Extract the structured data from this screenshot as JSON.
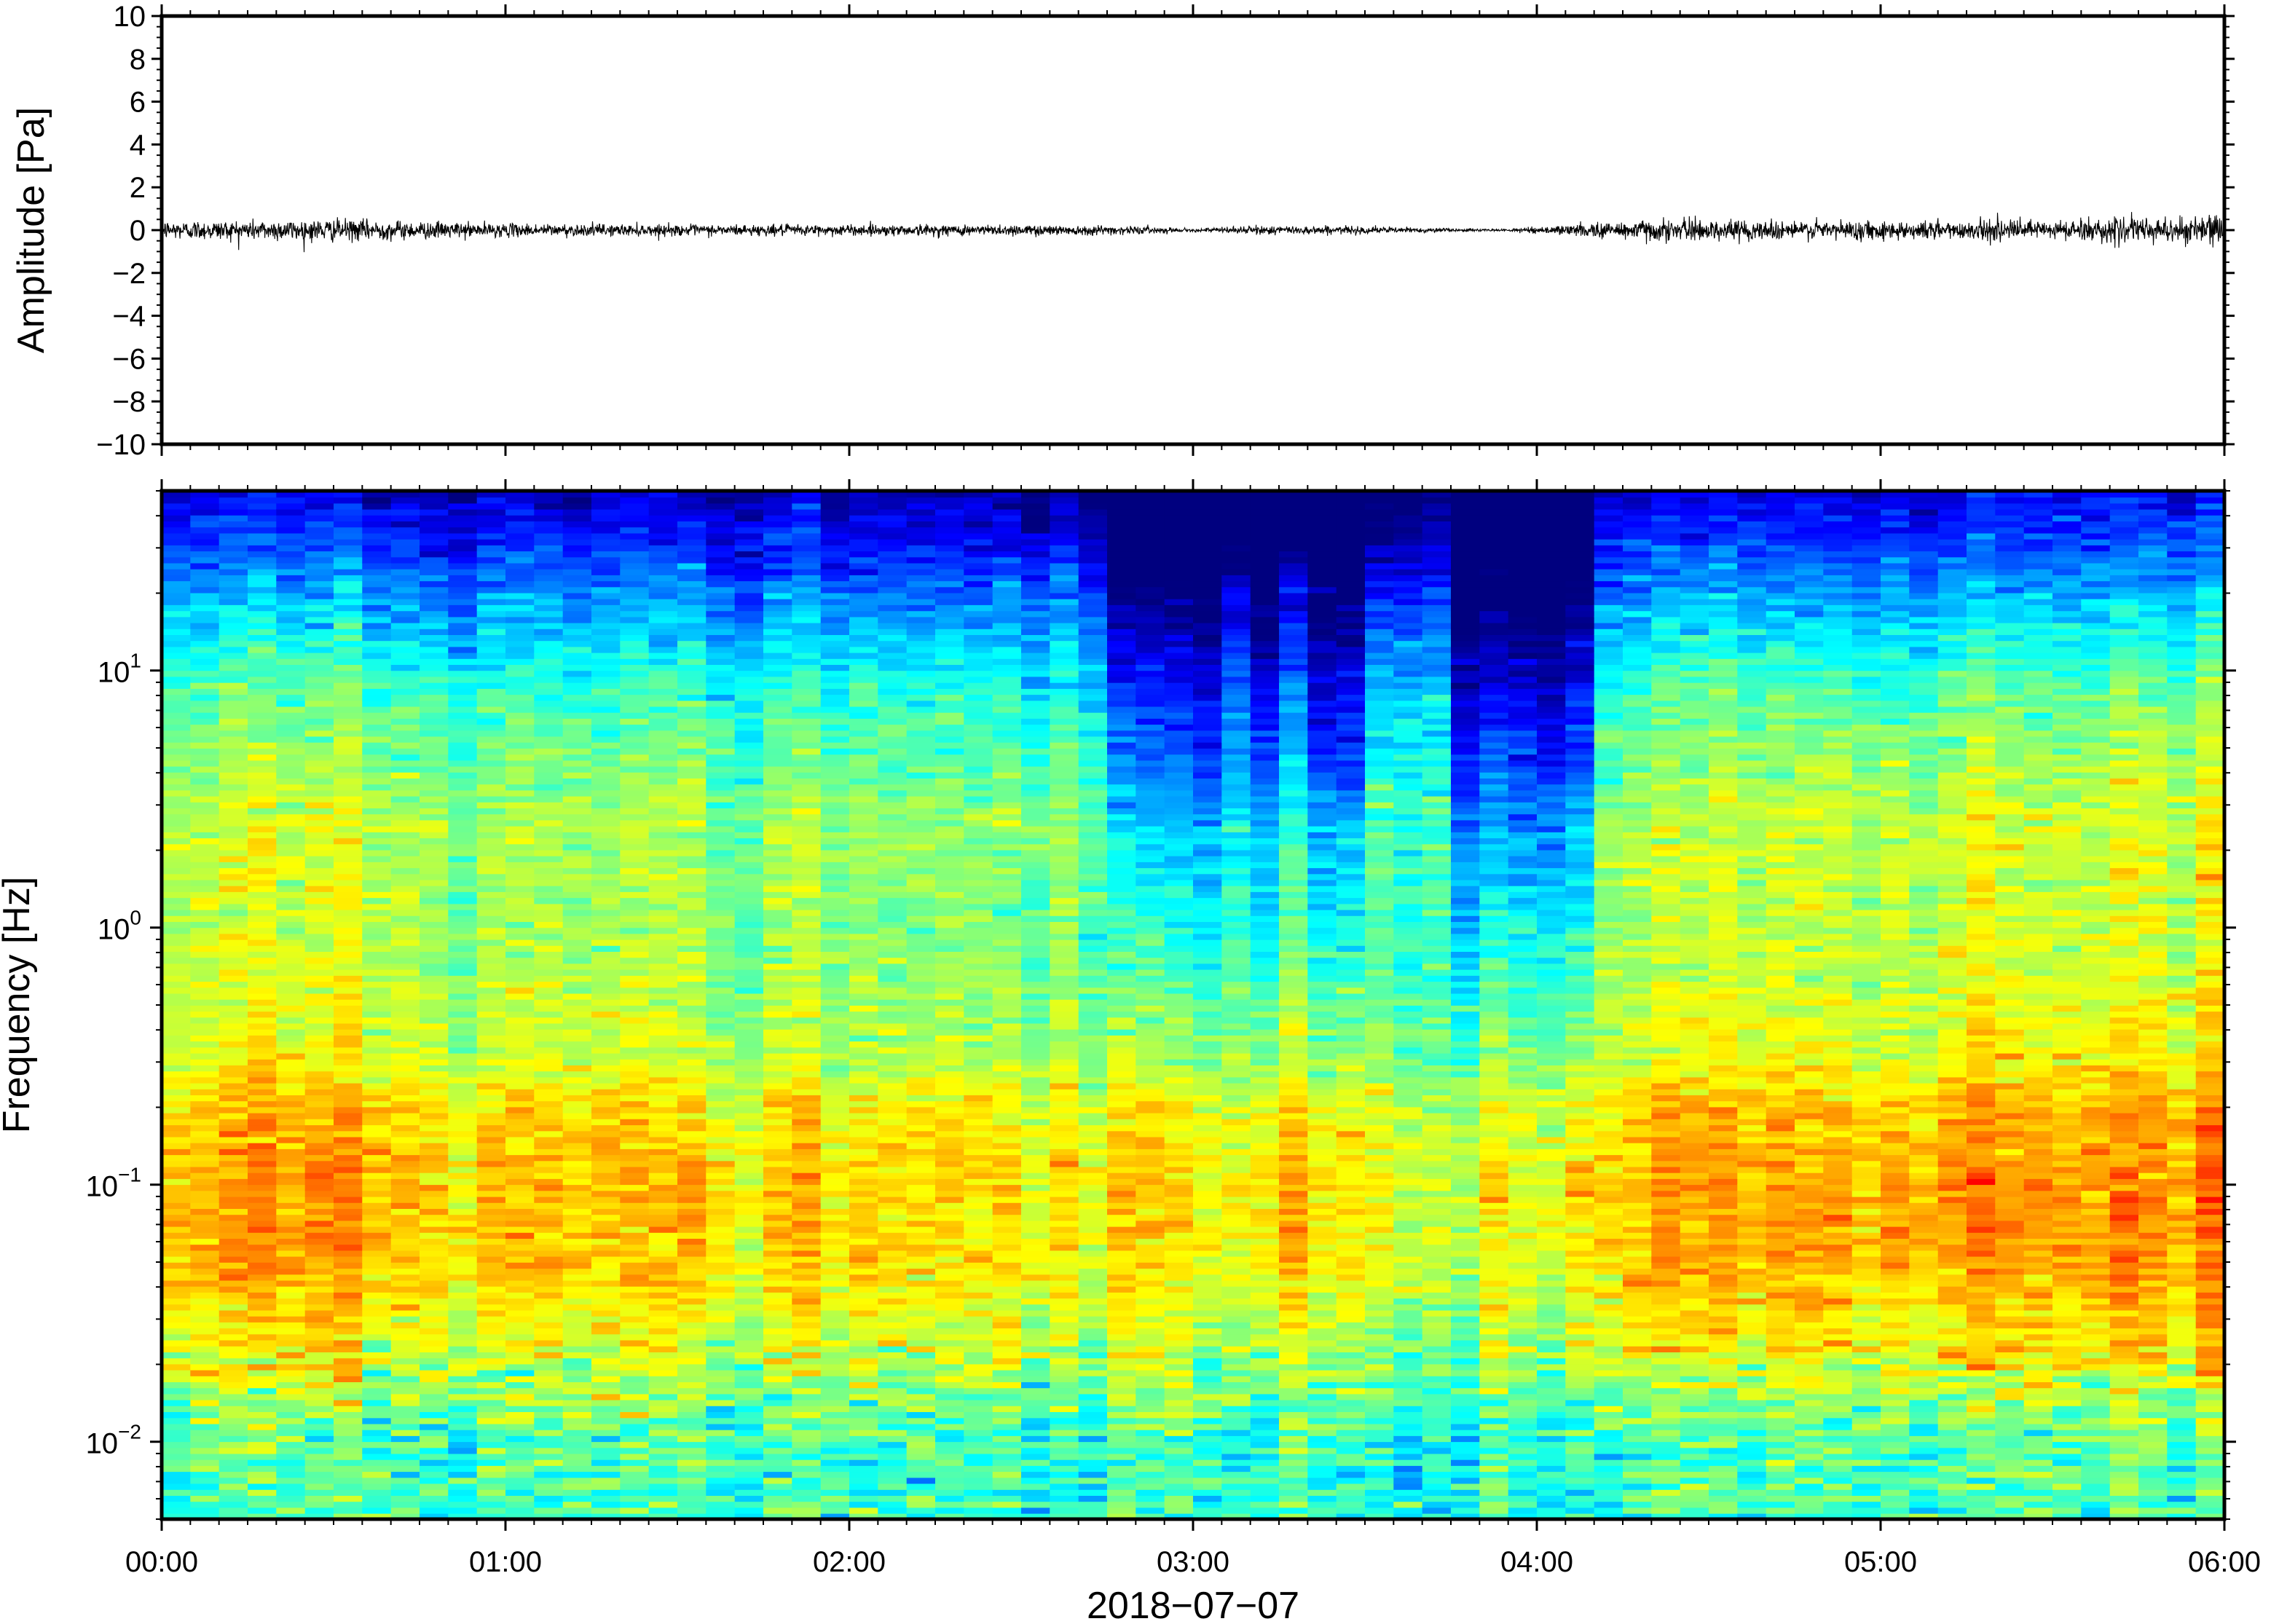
{
  "chart_data": [
    {
      "type": "line",
      "ylabel": "Amplitude [Pa]",
      "ylim": [
        -10,
        10
      ],
      "yticks": [
        10,
        8,
        6,
        4,
        2,
        0,
        -2,
        -4,
        -6,
        -8,
        -10
      ],
      "ytick_labels": [
        "10",
        "8",
        "6",
        "4",
        "2",
        "0",
        "−2",
        "−4",
        "−6",
        "−8",
        "−10"
      ],
      "xlim_hours": [
        0,
        6
      ],
      "x": [
        0,
        0.5,
        1.0,
        1.5,
        2.0,
        2.5,
        2.8,
        3.0,
        3.2,
        3.5,
        3.7,
        3.9,
        4.1,
        4.3,
        4.5,
        5.0,
        5.5,
        6.0
      ],
      "envelope_pa": [
        0.5,
        0.6,
        0.35,
        0.3,
        0.3,
        0.3,
        0.25,
        0.08,
        0.25,
        0.2,
        0.12,
        0.05,
        0.3,
        0.6,
        0.55,
        0.5,
        0.55,
        0.8
      ],
      "peak_pa": [
        1.2,
        -1.5,
        1.0,
        0.6
      ],
      "line_color": "#000000",
      "grid": false
    },
    {
      "type": "heatmap",
      "ylabel": "Frequency [Hz]",
      "yscale": "log",
      "ylim": [
        0.005,
        50
      ],
      "yticks": [
        0.01,
        0.1,
        1,
        10
      ],
      "ytick_labels": [
        {
          "base": "10",
          "exp": "−2"
        },
        {
          "base": "10",
          "exp": "−1"
        },
        {
          "base": "10",
          "exp": "0"
        },
        {
          "base": "10",
          "exp": "1"
        }
      ],
      "xlim_hours": [
        0,
        6
      ],
      "xticks": [
        "00:00",
        "01:00",
        "02:00",
        "03:00",
        "04:00",
        "05:00",
        "06:00"
      ],
      "xlabel": "2018−07−07",
      "colormap": "jet",
      "colormap_stops": [
        "#00007f",
        "#0000ff",
        "#007fff",
        "#00ffff",
        "#7fff7f",
        "#ffff00",
        "#ff7f00",
        "#ff0000",
        "#7f0000"
      ],
      "quiet_intervals_hours": [
        [
          2.78,
          3.1
        ],
        [
          3.18,
          3.28
        ],
        [
          3.35,
          3.5
        ],
        [
          3.8,
          4.13
        ]
      ],
      "grid": false
    }
  ]
}
